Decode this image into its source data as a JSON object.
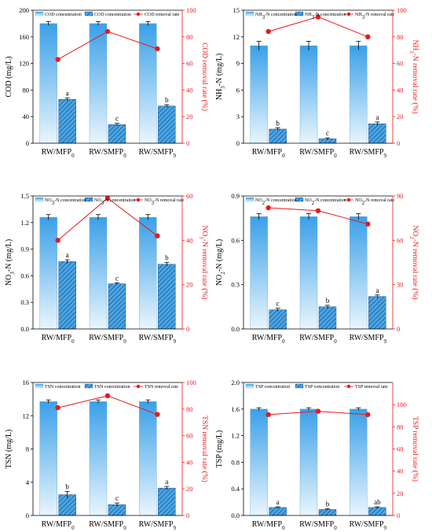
{
  "colors": {
    "bar_top": "#3aa0e8",
    "bar_bottom": "#e9f5fd",
    "hatch_fill": "#49a6e6",
    "hatch_line": "#0f3f74",
    "rate": "#e8191b",
    "axis_right": "#e8191b"
  },
  "chart_data": [
    {
      "type": "bar",
      "categories": [
        [
          "RW/MFP",
          "0"
        ],
        [
          "RW/SMFP",
          "0"
        ],
        [
          "RW/SMFP",
          "9"
        ]
      ],
      "ylabel": [
        [
          "COD  (mg/L)",
          ""
        ]
      ],
      "ylabel_right": [
        [
          "COD removal rate  (%)",
          ""
        ]
      ],
      "ylim": [
        0,
        200
      ],
      "yticks": [
        "0",
        "40",
        "80",
        "120",
        "160",
        "200"
      ],
      "ylim_right": [
        0,
        100
      ],
      "yticks_right": [
        "0",
        "20",
        "40",
        "60",
        "80",
        "100"
      ],
      "legend": [
        [
          [
            "COD concentration",
            ""
          ]
        ],
        [
          [
            "COD concentration",
            ""
          ]
        ],
        [
          [
            "COD removal rate",
            ""
          ]
        ]
      ],
      "series": [
        {
          "kind": "bar-gradient",
          "values": [
            180,
            180,
            180
          ],
          "error": [
            3,
            3,
            3
          ]
        },
        {
          "kind": "bar-hatched",
          "values": [
            66,
            28,
            56
          ],
          "error": [
            2,
            2,
            2
          ],
          "labels": [
            "a",
            "c",
            "b"
          ]
        },
        {
          "kind": "line",
          "axis": "right",
          "values": [
            63,
            84,
            71
          ]
        }
      ]
    },
    {
      "type": "bar",
      "categories": [
        [
          "RW/MFP",
          "0"
        ],
        [
          "RW/SMFP",
          "0"
        ],
        [
          "RW/SMFP",
          "9"
        ]
      ],
      "ylabel": [
        [
          "NH",
          ""
        ],
        [
          "3",
          "sub"
        ],
        [
          "-N  (mg/L)",
          ""
        ]
      ],
      "ylabel_right": [
        [
          "NH",
          ""
        ],
        [
          "3",
          "sub"
        ],
        [
          "-N removal rate  (%)",
          ""
        ]
      ],
      "ylim": [
        0,
        15
      ],
      "yticks": [
        "0",
        "3",
        "6",
        "9",
        "12",
        "15"
      ],
      "ylim_right": [
        0,
        100
      ],
      "yticks_right": [
        "0",
        "20",
        "40",
        "60",
        "80",
        "100"
      ],
      "legend": [
        [
          [
            "NH",
            ""
          ],
          [
            "3",
            "sub"
          ],
          [
            "-N concentration",
            ""
          ]
        ],
        [
          [
            "NH",
            ""
          ],
          [
            "3",
            "sub"
          ],
          [
            "-N concentration",
            ""
          ]
        ],
        [
          [
            "NH",
            ""
          ],
          [
            "3",
            "sub"
          ],
          [
            "-N removal rate",
            ""
          ]
        ]
      ],
      "series": [
        {
          "kind": "bar-gradient",
          "values": [
            11.0,
            11.0,
            11.0
          ],
          "error": [
            0.5,
            0.5,
            0.5
          ]
        },
        {
          "kind": "bar-hatched",
          "values": [
            1.6,
            0.5,
            2.2
          ],
          "error": [
            0.15,
            0.1,
            0.2
          ],
          "labels": [
            "b",
            "c",
            "a"
          ]
        },
        {
          "kind": "line",
          "axis": "right",
          "values": [
            84,
            95,
            80
          ]
        }
      ]
    },
    {
      "type": "bar",
      "categories": [
        [
          "RW/MFP",
          "0"
        ],
        [
          "RW/SMFP",
          "0"
        ],
        [
          "RW/SMFP",
          "9"
        ]
      ],
      "ylabel": [
        [
          "NO",
          ""
        ],
        [
          "3",
          "sub"
        ],
        [
          "-N  (mg/L)",
          ""
        ]
      ],
      "ylabel_right": [
        [
          "NO",
          ""
        ],
        [
          "3",
          "sub"
        ],
        [
          "-N removal rate  (%)",
          ""
        ]
      ],
      "ylim": [
        0,
        1.5
      ],
      "yticks": [
        "0.0",
        "0.3",
        "0.6",
        "0.9",
        "1.2",
        "1.5"
      ],
      "ylim_right": [
        0,
        60
      ],
      "yticks_right": [
        "0",
        "20",
        "40",
        "60"
      ],
      "legend": [
        [
          [
            "NO",
            ""
          ],
          [
            "3",
            "sub"
          ],
          [
            "-N concentration",
            ""
          ]
        ],
        [
          [
            "NO",
            ""
          ],
          [
            "3",
            "sub"
          ],
          [
            "-N concentration",
            ""
          ]
        ],
        [
          [
            "NO",
            ""
          ],
          [
            "3",
            "sub"
          ],
          [
            "-N removal rate",
            ""
          ]
        ]
      ],
      "series": [
        {
          "kind": "bar-gradient",
          "values": [
            1.26,
            1.26,
            1.26
          ],
          "error": [
            0.03,
            0.03,
            0.03
          ]
        },
        {
          "kind": "bar-hatched",
          "values": [
            0.76,
            0.51,
            0.73
          ],
          "error": [
            0.02,
            0.01,
            0.02
          ],
          "labels": [
            "a",
            "c",
            "b"
          ]
        },
        {
          "kind": "line",
          "axis": "right",
          "values": [
            40,
            59,
            42
          ]
        }
      ]
    },
    {
      "type": "bar",
      "categories": [
        [
          "RW/MFP",
          "0"
        ],
        [
          "RW/SMFP",
          "0"
        ],
        [
          "RW/SMFP",
          "9"
        ]
      ],
      "ylabel": [
        [
          "NO",
          ""
        ],
        [
          "2",
          "sub"
        ],
        [
          "-N  (mg/L)",
          ""
        ]
      ],
      "ylabel_right": [
        [
          "NO",
          ""
        ],
        [
          "2",
          "sub"
        ],
        [
          "-N removal rate  (%)",
          ""
        ]
      ],
      "ylim": [
        0,
        0.9
      ],
      "yticks": [
        "0.0",
        "0.3",
        "0.6",
        "0.9"
      ],
      "ylim_right": [
        0,
        90
      ],
      "yticks_right": [
        "0",
        "30",
        "60",
        "90"
      ],
      "legend": [
        [
          [
            "NO",
            ""
          ],
          [
            "2",
            "sub"
          ],
          [
            "-N concentration",
            ""
          ]
        ],
        [
          [
            "NO",
            ""
          ],
          [
            "2",
            "sub"
          ],
          [
            "-N concentration",
            ""
          ]
        ],
        [
          [
            "NO",
            ""
          ],
          [
            "2",
            "sub"
          ],
          [
            "-N removal rate",
            ""
          ]
        ]
      ],
      "series": [
        {
          "kind": "bar-gradient",
          "values": [
            0.76,
            0.76,
            0.76
          ],
          "error": [
            0.02,
            0.02,
            0.02
          ]
        },
        {
          "kind": "bar-hatched",
          "values": [
            0.13,
            0.15,
            0.22
          ],
          "error": [
            0.01,
            0.01,
            0.01
          ],
          "labels": [
            "c",
            "b",
            "a"
          ]
        },
        {
          "kind": "line",
          "axis": "right",
          "values": [
            82,
            80,
            71
          ]
        }
      ]
    },
    {
      "type": "bar",
      "categories": [
        [
          "RW/MFP",
          "0"
        ],
        [
          "RW/SMFP",
          "0"
        ],
        [
          "RW/SMFP",
          "9"
        ]
      ],
      "ylabel": [
        [
          "TSN  (mg/L)",
          ""
        ]
      ],
      "ylabel_right": [
        [
          "TSN removal rate  (%)",
          ""
        ]
      ],
      "ylim": [
        0,
        16
      ],
      "yticks": [
        "0",
        "4",
        "8",
        "12",
        "16"
      ],
      "ylim_right": [
        0,
        100
      ],
      "yticks_right": [
        "0",
        "20",
        "40",
        "60",
        "80",
        "100"
      ],
      "legend": [
        [
          [
            "TSN concentration",
            ""
          ]
        ],
        [
          [
            "TSN concentration",
            ""
          ]
        ],
        [
          [
            "TSN removal rate",
            ""
          ]
        ]
      ],
      "series": [
        {
          "kind": "bar-gradient",
          "values": [
            13.7,
            13.7,
            13.7
          ],
          "error": [
            0.2,
            0.2,
            0.2
          ]
        },
        {
          "kind": "bar-hatched",
          "values": [
            2.5,
            1.3,
            3.3
          ],
          "error": [
            0.4,
            0.2,
            0.2
          ],
          "labels": [
            "b",
            "c",
            "a"
          ]
        },
        {
          "kind": "line",
          "axis": "right",
          "values": [
            81,
            90,
            76
          ]
        }
      ]
    },
    {
      "type": "bar",
      "categories": [
        [
          "RW/MFP",
          "0"
        ],
        [
          "RW/SMFP",
          "0"
        ],
        [
          "RW/SMFP",
          "9"
        ]
      ],
      "ylabel": [
        [
          "TSP  (mg/L)",
          ""
        ]
      ],
      "ylabel_right": [
        [
          "TSP removal rate  (%)",
          ""
        ]
      ],
      "ylim": [
        0,
        2.0
      ],
      "yticks": [
        "0.0",
        "0.4",
        "0.8",
        "1.2",
        "1.6",
        "2.0"
      ],
      "ylim_right": [
        0,
        120
      ],
      "yticks_right": [
        "0",
        "20",
        "40",
        "60",
        "80",
        "100"
      ],
      "legend": [
        [
          [
            "TSP concentration",
            ""
          ]
        ],
        [
          [
            "TSP concentration",
            ""
          ]
        ],
        [
          [
            "TSP removal rate",
            ""
          ]
        ]
      ],
      "series": [
        {
          "kind": "bar-gradient",
          "values": [
            1.6,
            1.6,
            1.6
          ],
          "error": [
            0.02,
            0.02,
            0.02
          ]
        },
        {
          "kind": "bar-hatched",
          "values": [
            0.12,
            0.09,
            0.12
          ],
          "error": [
            0.01,
            0.01,
            0.01
          ],
          "labels": [
            "a",
            "b",
            "ab"
          ]
        },
        {
          "kind": "line",
          "axis": "right",
          "values": [
            91,
            94,
            91
          ]
        }
      ]
    }
  ]
}
